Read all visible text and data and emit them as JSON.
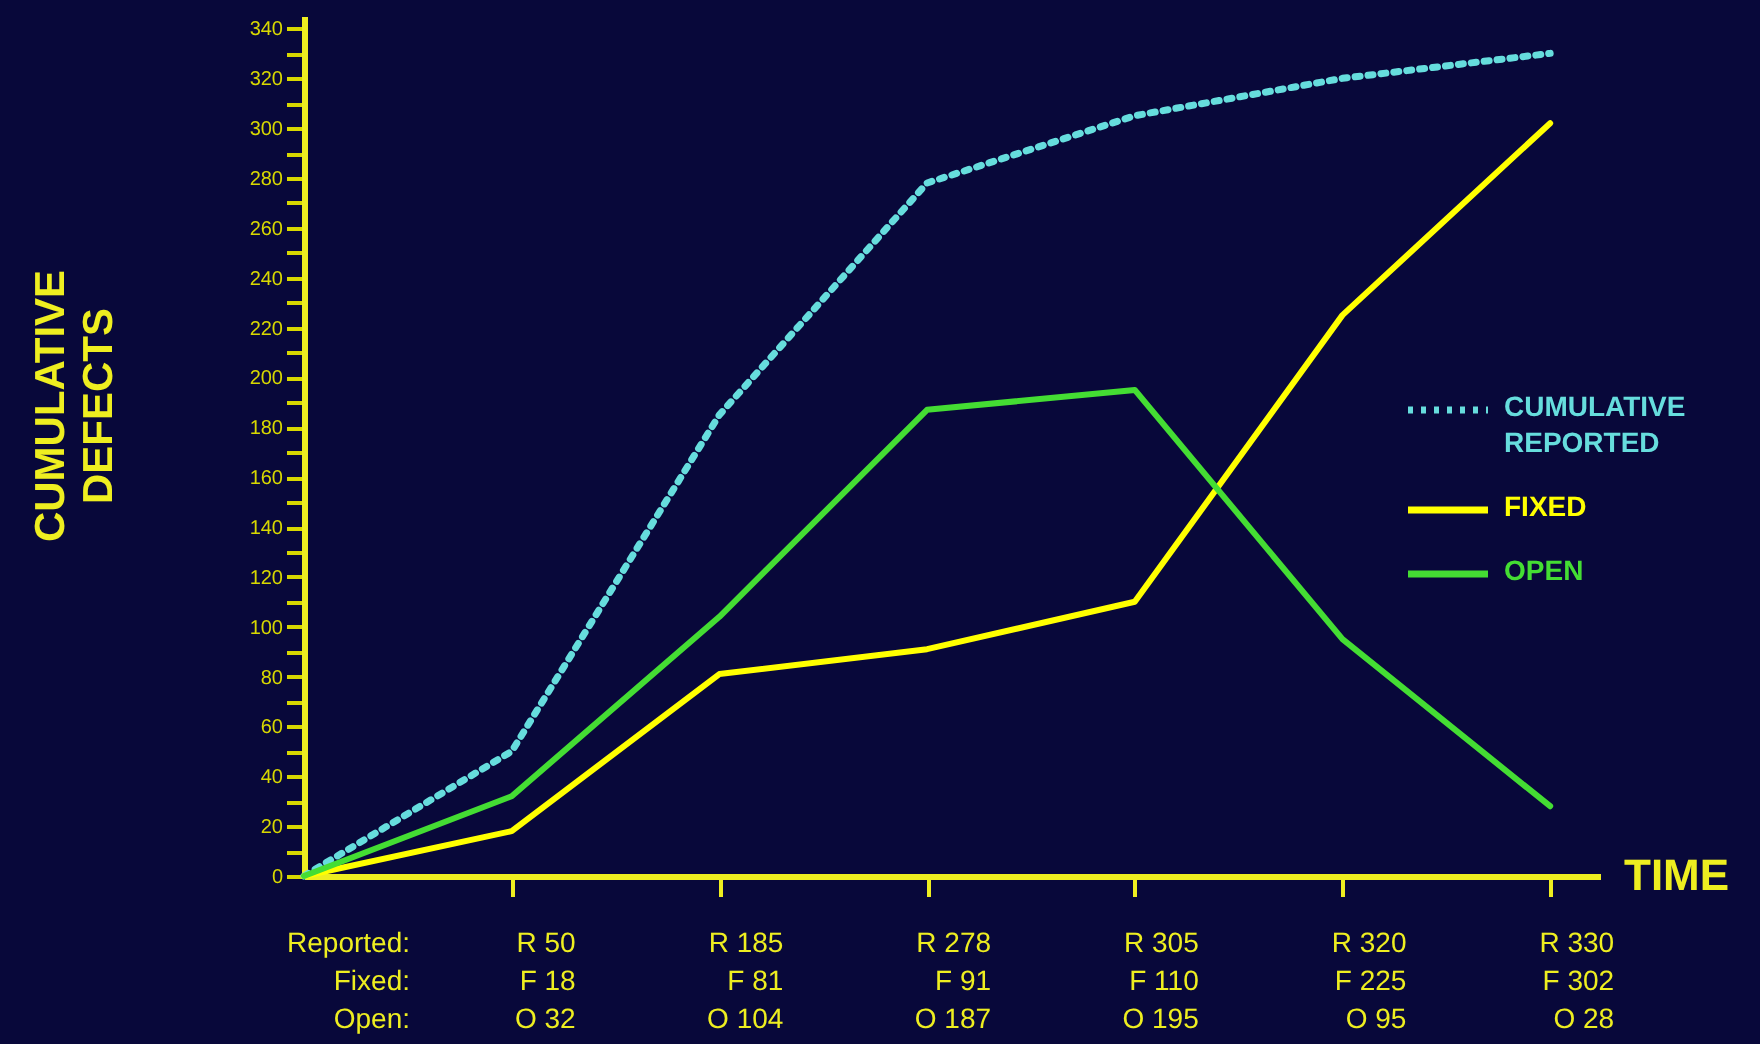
{
  "chart_data": {
    "type": "line",
    "xlabel": "TIME",
    "ylabel": "CUMULATIVE DEFECTS",
    "categories": [
      null,
      null,
      null,
      null,
      null,
      null,
      null
    ],
    "series": [
      {
        "name": "CUMULATIVE REPORTED",
        "color": "#66dddd",
        "line_style": "dotted",
        "values": [
          0,
          50,
          185,
          278,
          305,
          320,
          330
        ],
        "value_labels": [
          null,
          "R 50",
          "R 185",
          "R 278",
          "R 305",
          "R 320",
          "R 330"
        ]
      },
      {
        "name": "FIXED",
        "color": "#ffff00",
        "line_style": "solid",
        "values": [
          0,
          18,
          81,
          91,
          110,
          225,
          302
        ],
        "value_labels": [
          null,
          "F 18",
          "F 81",
          "F 91",
          "F 110",
          "F 225",
          "F 302"
        ]
      },
      {
        "name": "OPEN",
        "color": "#44dd33",
        "line_style": "solid",
        "values": [
          0,
          32,
          104,
          187,
          195,
          95,
          28
        ],
        "value_labels": [
          null,
          "O 32",
          "O 104",
          "O 187",
          "O 195",
          "O 95",
          "O 28"
        ]
      }
    ],
    "annotations": [
      "Reported:",
      "Fixed:",
      "Open:"
    ],
    "ylim": [
      0,
      345
    ],
    "yticks": [
      0,
      {
        "value": 10,
        "label": null
      },
      20,
      {
        "value": 30,
        "label": null
      },
      40,
      {
        "value": 50,
        "label": null
      },
      60,
      {
        "value": 70,
        "label": null
      },
      80,
      {
        "value": 90,
        "label": null
      },
      100,
      {
        "value": 110,
        "label": null
      },
      120,
      {
        "value": 130,
        "label": null
      },
      140,
      {
        "value": 150,
        "label": null
      },
      160,
      {
        "value": 170,
        "label": null
      },
      180,
      {
        "value": 190,
        "label": null
      },
      200,
      {
        "value": 210,
        "label": null
      },
      220,
      {
        "value": 230,
        "label": null
      },
      240,
      {
        "value": 250,
        "label": null
      },
      260,
      {
        "value": 270,
        "label": null
      },
      280,
      {
        "value": 290,
        "label": null
      },
      300,
      {
        "value": 310,
        "label": null
      },
      320,
      {
        "value": 330,
        "label": null
      },
      340
    ],
    "grid": false,
    "legend": "right",
    "tick_labels": "y"
  }
}
